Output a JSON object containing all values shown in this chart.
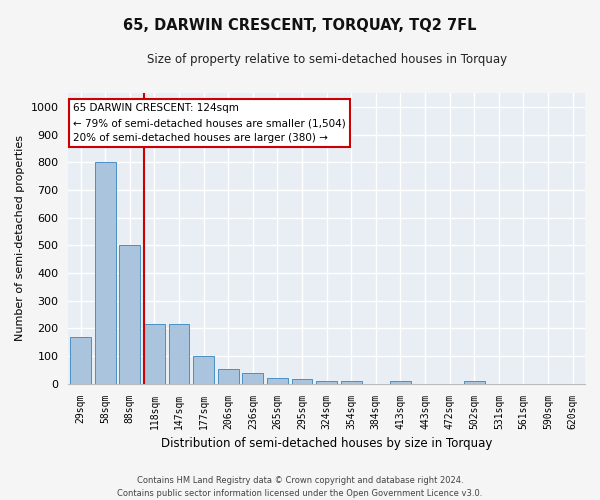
{
  "title": "65, DARWIN CRESCENT, TORQUAY, TQ2 7FL",
  "subtitle": "Size of property relative to semi-detached houses in Torquay",
  "xlabel": "Distribution of semi-detached houses by size in Torquay",
  "ylabel": "Number of semi-detached properties",
  "categories": [
    "29sqm",
    "58sqm",
    "88sqm",
    "118sqm",
    "147sqm",
    "177sqm",
    "206sqm",
    "236sqm",
    "265sqm",
    "295sqm",
    "324sqm",
    "354sqm",
    "384sqm",
    "413sqm",
    "443sqm",
    "472sqm",
    "502sqm",
    "531sqm",
    "561sqm",
    "590sqm",
    "620sqm"
  ],
  "values": [
    170,
    800,
    500,
    215,
    215,
    100,
    53,
    37,
    22,
    18,
    10,
    10,
    0,
    10,
    0,
    0,
    10,
    0,
    0,
    0,
    0
  ],
  "bar_color": "#aac4de",
  "bar_edgecolor": "#4a90c4",
  "vline_color": "#cc0000",
  "ylim": [
    0,
    1050
  ],
  "yticks": [
    0,
    100,
    200,
    300,
    400,
    500,
    600,
    700,
    800,
    900,
    1000
  ],
  "annotation_title": "65 DARWIN CRESCENT: 124sqm",
  "annotation_line2": "← 79% of semi-detached houses are smaller (1,504)",
  "annotation_line3": "20% of semi-detached houses are larger (380) →",
  "annotation_box_color": "#cc0000",
  "footer_line1": "Contains HM Land Registry data © Crown copyright and database right 2024.",
  "footer_line2": "Contains public sector information licensed under the Open Government Licence v3.0.",
  "plot_bg_color": "#e8eef4",
  "fig_bg_color": "#f5f5f5",
  "grid_color": "#ffffff"
}
